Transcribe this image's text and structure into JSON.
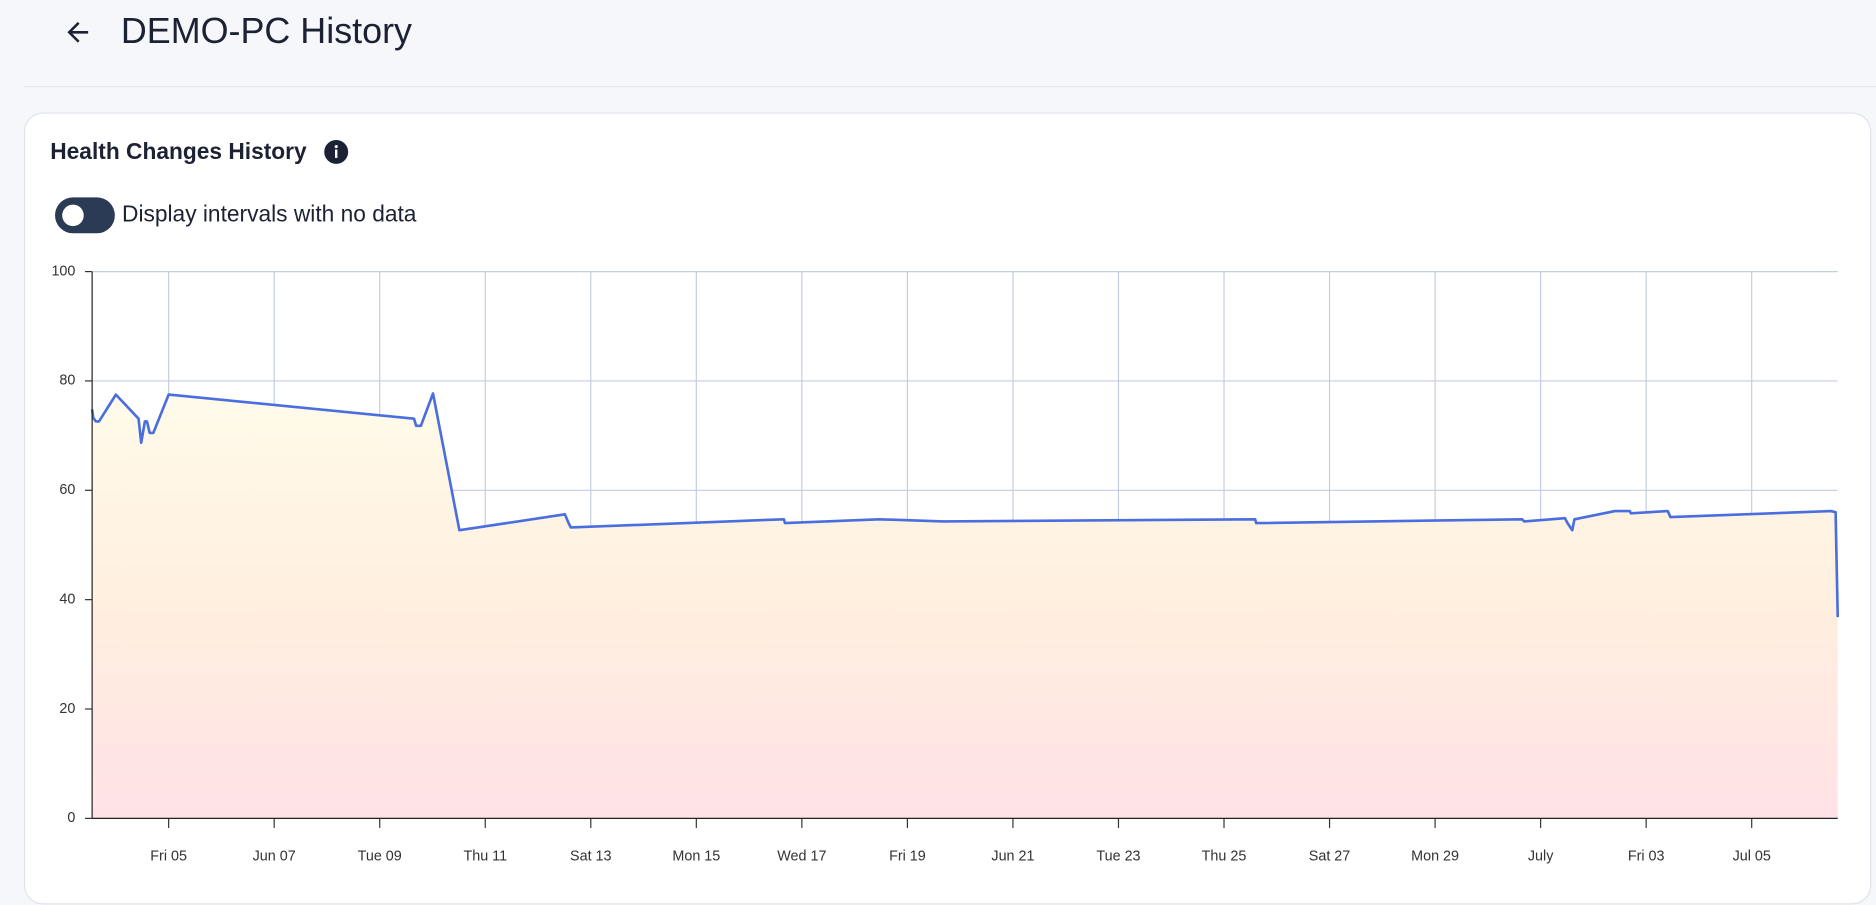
{
  "header": {
    "title": "DEMO-PC History"
  },
  "card": {
    "title": "Health Changes History",
    "toggle_label": "Display intervals with no data"
  },
  "chart_data": {
    "type": "line",
    "color": "#4a6ee0",
    "grid": true,
    "x": [
      3.55,
      3.57,
      3.62,
      3.68,
      4.0,
      4.43,
      4.48,
      4.55,
      4.59,
      4.64,
      4.71,
      5.0,
      9.65,
      9.69,
      9.78,
      10.01,
      10.51,
      12.51,
      12.58,
      12.62,
      16.66,
      16.68,
      18.47,
      19.67,
      25.59,
      25.61,
      30.65,
      30.69,
      31.46,
      31.51,
      31.6,
      31.64,
      32.41,
      32.69,
      32.71,
      33.41,
      33.46,
      36.5,
      36.59,
      36.63
    ],
    "values": [
      74.8,
      73.3,
      72.6,
      72.6,
      77.5,
      73.1,
      68.7,
      72.6,
      72.6,
      70.5,
      70.5,
      77.5,
      73.1,
      71.8,
      71.8,
      77.7,
      52.7,
      55.6,
      54.0,
      53.2,
      54.7,
      54.0,
      54.7,
      54.3,
      54.7,
      54.0,
      54.7,
      54.3,
      54.9,
      54.0,
      52.7,
      54.7,
      56.2,
      56.2,
      55.8,
      56.2,
      55.1,
      56.2,
      56.0,
      36.8
    ],
    "xlim": [
      3.55,
      36.63
    ],
    "xticks": [
      {
        "value": 5,
        "label": "Fri 05"
      },
      {
        "value": 7,
        "label": "Jun 07"
      },
      {
        "value": 9,
        "label": "Tue 09"
      },
      {
        "value": 11,
        "label": "Thu 11"
      },
      {
        "value": 13,
        "label": "Sat 13"
      },
      {
        "value": 15,
        "label": "Mon 15"
      },
      {
        "value": 17,
        "label": "Wed 17"
      },
      {
        "value": 19,
        "label": "Fri 19"
      },
      {
        "value": 21,
        "label": "Jun 21"
      },
      {
        "value": 23,
        "label": "Tue 23"
      },
      {
        "value": 25,
        "label": "Thu 25"
      },
      {
        "value": 27,
        "label": "Sat 27"
      },
      {
        "value": 29,
        "label": "Mon 29"
      },
      {
        "value": 31,
        "label": "July"
      },
      {
        "value": 33,
        "label": "Fri 03"
      },
      {
        "value": 35,
        "label": "Jul 05"
      }
    ],
    "ylim": [
      0,
      100
    ],
    "yticks": [
      0,
      20,
      40,
      60,
      80,
      100
    ]
  }
}
